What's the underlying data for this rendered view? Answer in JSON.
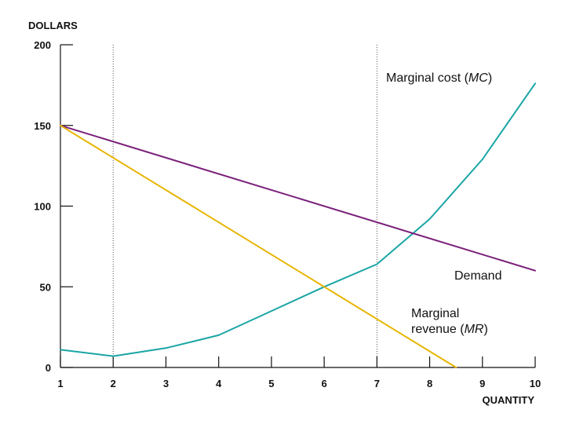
{
  "chart_data": {
    "type": "line",
    "title": "",
    "xlabel": "QUANTITY",
    "ylabel": "DOLLARS",
    "xlim": [
      1,
      10
    ],
    "ylim": [
      0,
      200
    ],
    "x_ticks": [
      1,
      2,
      3,
      4,
      5,
      6,
      7,
      8,
      9,
      10
    ],
    "y_ticks": [
      0,
      50,
      100,
      150,
      200
    ],
    "grid": false,
    "vertical_guides": [
      2,
      7
    ],
    "series": [
      {
        "name": "Marginal cost (MC)",
        "label_lines": [
          [
            {
              "text": "Marginal cost (",
              "italic": false
            },
            {
              "text": "MC",
              "italic": true
            },
            {
              "text": ")",
              "italic": false
            }
          ]
        ],
        "color": "#1aa5a5",
        "x": [
          1,
          2,
          3,
          4,
          5,
          6,
          7,
          8,
          9,
          10
        ],
        "y": [
          11,
          7,
          12,
          20,
          35,
          50,
          64,
          92,
          129,
          176
        ]
      },
      {
        "name": "Demand",
        "label_lines": [
          [
            {
              "text": "Demand",
              "italic": false
            }
          ]
        ],
        "color": "#7a1f7a",
        "x": [
          1,
          10
        ],
        "y": [
          150,
          60
        ]
      },
      {
        "name": "Marginal revenue (MR)",
        "label_lines": [
          [
            {
              "text": "Marginal",
              "italic": false
            }
          ],
          [
            {
              "text": "revenue (",
              "italic": false
            },
            {
              "text": "MR",
              "italic": true
            },
            {
              "text": ")",
              "italic": false
            }
          ]
        ],
        "color": "#e8b400",
        "x": [
          1,
          8.5
        ],
        "y": [
          150,
          0
        ]
      }
    ]
  }
}
